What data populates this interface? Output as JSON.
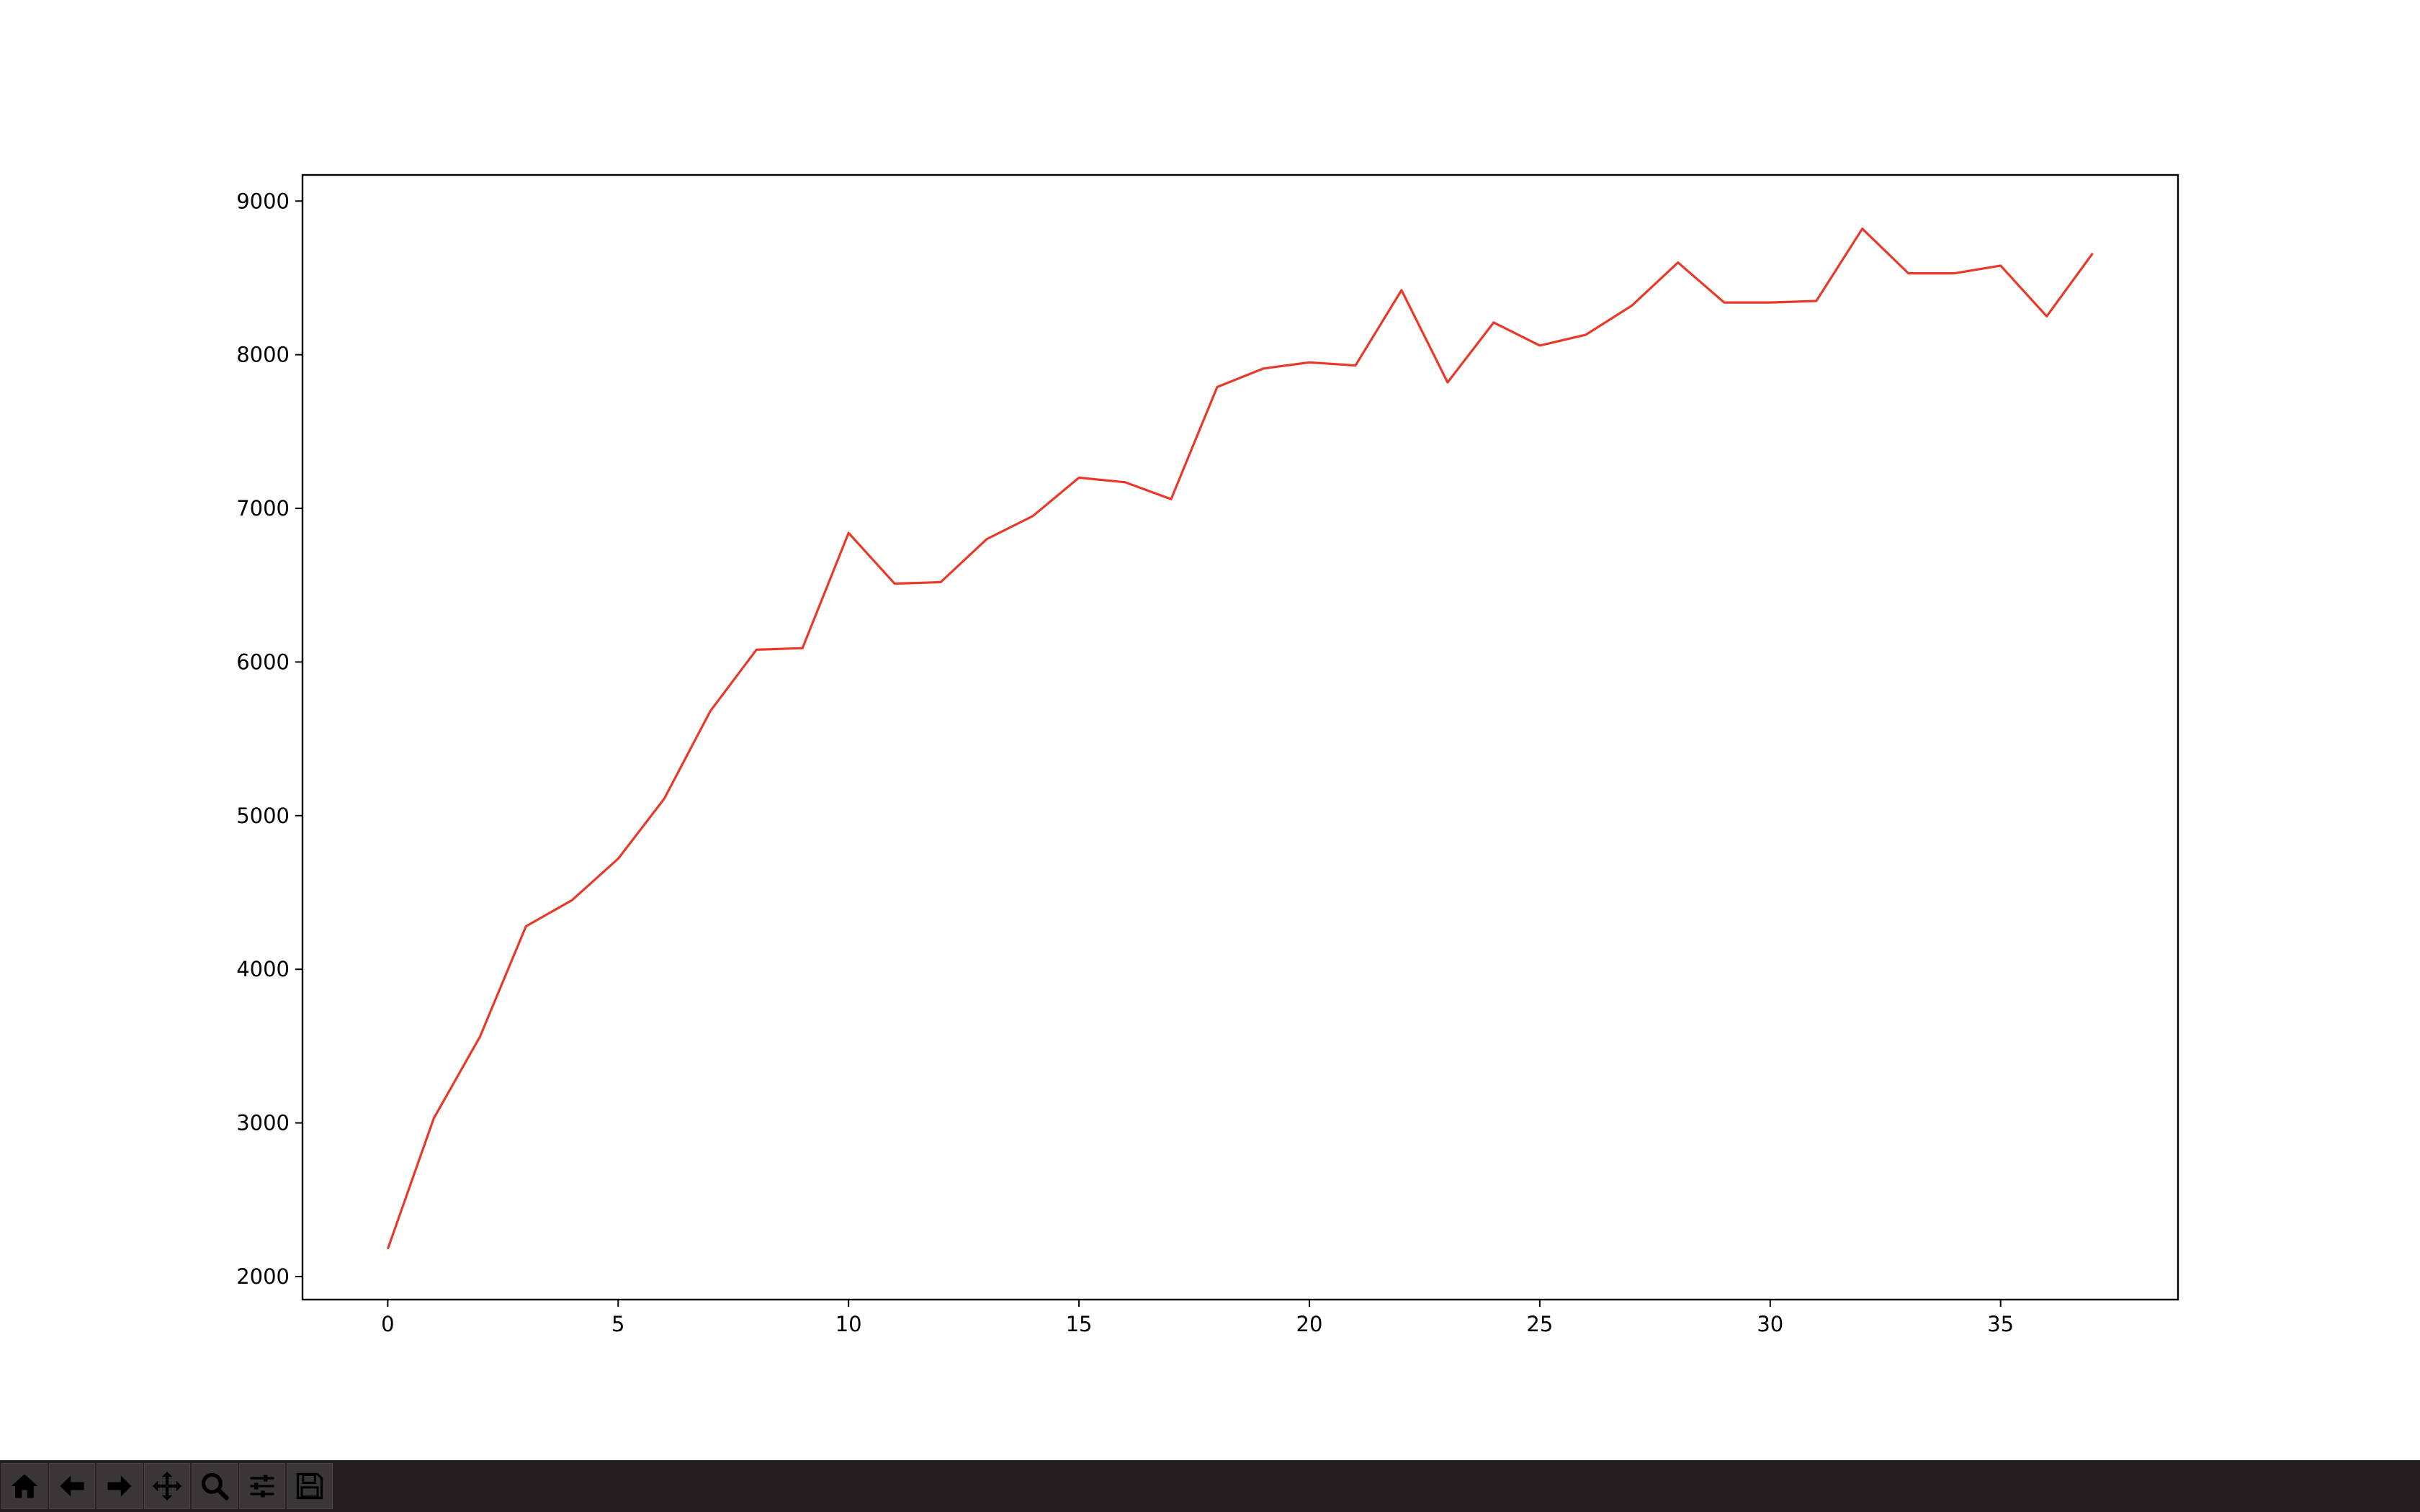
{
  "chart_data": {
    "type": "line",
    "title": "",
    "xlabel": "",
    "ylabel": "",
    "xlim": [
      -1.85,
      38.85
    ],
    "ylim": [
      1850,
      9170
    ],
    "xticks": [
      0,
      5,
      10,
      15,
      20,
      25,
      30,
      35
    ],
    "yticks": [
      2000,
      3000,
      4000,
      5000,
      6000,
      7000,
      8000,
      9000
    ],
    "grid": false,
    "series": [
      {
        "color": "#e8392a",
        "x": [
          0,
          1,
          2,
          3,
          4,
          5,
          6,
          7,
          8,
          9,
          10,
          11,
          12,
          13,
          14,
          15,
          16,
          17,
          18,
          19,
          20,
          21,
          22,
          23,
          24,
          25,
          26,
          27,
          28,
          29,
          30,
          31,
          32,
          33,
          34,
          35,
          36,
          37
        ],
        "y": [
          2180,
          3030,
          3560,
          4280,
          4450,
          4720,
          5110,
          5680,
          6080,
          6090,
          6840,
          6510,
          6520,
          6800,
          6950,
          7200,
          7170,
          7060,
          7790,
          7910,
          7950,
          7930,
          8420,
          7820,
          8210,
          8060,
          8130,
          8320,
          8600,
          8340,
          8340,
          8350,
          8820,
          8530,
          8530,
          8580,
          8250,
          8660
        ]
      }
    ]
  },
  "toolbar": {
    "buttons": [
      {
        "icon": "home-icon",
        "name": "home-button"
      },
      {
        "icon": "back-arrow-icon",
        "name": "back-button"
      },
      {
        "icon": "forward-arrow-icon",
        "name": "forward-button"
      },
      {
        "icon": "pan-move-icon",
        "name": "pan-button"
      },
      {
        "icon": "zoom-magnifier-icon",
        "name": "zoom-button"
      },
      {
        "icon": "configure-subplots-icon",
        "name": "configure-subplots-button"
      },
      {
        "icon": "save-floppy-icon",
        "name": "save-button"
      }
    ]
  }
}
